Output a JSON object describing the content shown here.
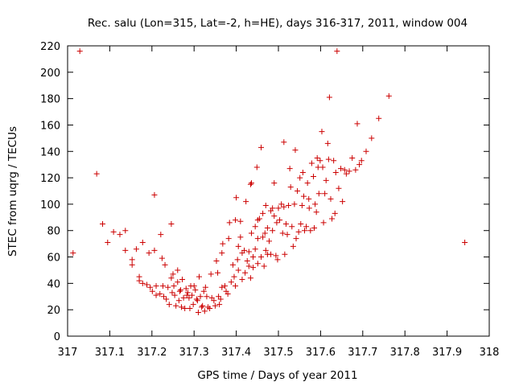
{
  "chart_data": {
    "type": "scatter",
    "title": "Rec. salu (Lon=315, Lat=-2, h=HE), days 316-317, 2011, window 004",
    "xlabel": "GPS time / Days of year 2011",
    "ylabel": "STEC from uqrg / TECUs",
    "xlim": [
      317,
      318
    ],
    "ylim": [
      0,
      220
    ],
    "xticks": [
      317,
      317.1,
      317.2,
      317.3,
      317.4,
      317.5,
      317.6,
      317.7,
      317.8,
      317.9,
      318
    ],
    "xtick_labels": [
      "317",
      "317.1",
      "317.2",
      "317.3",
      "317.4",
      "317.5",
      "317.6",
      "317.7",
      "317.8",
      "317.9",
      "318"
    ],
    "yticks": [
      0,
      20,
      40,
      60,
      80,
      100,
      120,
      140,
      160,
      180,
      200,
      220
    ],
    "ytick_labels": [
      "0",
      "20",
      "40",
      "60",
      "80",
      "100",
      "120",
      "140",
      "160",
      "180",
      "200",
      "220"
    ],
    "grid": false,
    "marker": "+",
    "color": "#cc0000",
    "series": [
      {
        "points": [
          [
            317.013,
            63
          ],
          [
            317.029,
            216
          ],
          [
            317.069,
            123
          ],
          [
            317.083,
            85
          ],
          [
            317.095,
            71
          ],
          [
            317.109,
            79
          ],
          [
            317.124,
            77
          ],
          [
            317.137,
            80
          ],
          [
            317.137,
            65
          ],
          [
            317.153,
            58
          ],
          [
            317.153,
            54
          ],
          [
            317.163,
            66
          ],
          [
            317.17,
            45
          ],
          [
            317.17,
            42
          ],
          [
            317.178,
            71
          ],
          [
            317.178,
            40
          ],
          [
            317.188,
            39
          ],
          [
            317.193,
            63
          ],
          [
            317.196,
            37
          ],
          [
            317.201,
            34
          ],
          [
            317.206,
            65
          ],
          [
            317.206,
            107
          ],
          [
            317.21,
            31
          ],
          [
            317.21,
            38
          ],
          [
            317.219,
            32
          ],
          [
            317.221,
            77
          ],
          [
            317.224,
            59
          ],
          [
            317.226,
            38
          ],
          [
            317.228,
            30
          ],
          [
            317.231,
            54
          ],
          [
            317.234,
            28
          ],
          [
            317.238,
            37
          ],
          [
            317.241,
            24
          ],
          [
            317.246,
            85
          ],
          [
            317.246,
            44
          ],
          [
            317.248,
            33
          ],
          [
            317.25,
            47
          ],
          [
            317.252,
            38
          ],
          [
            317.254,
            31
          ],
          [
            317.257,
            23
          ],
          [
            317.261,
            50
          ],
          [
            317.261,
            41
          ],
          [
            317.264,
            27
          ],
          [
            317.266,
            34
          ],
          [
            317.268,
            35
          ],
          [
            317.27,
            22
          ],
          [
            317.272,
            43
          ],
          [
            317.275,
            29
          ],
          [
            317.278,
            21
          ],
          [
            317.281,
            36
          ],
          [
            317.283,
            31
          ],
          [
            317.285,
            33
          ],
          [
            317.288,
            29
          ],
          [
            317.29,
            21
          ],
          [
            317.292,
            38
          ],
          [
            317.295,
            31
          ],
          [
            317.298,
            24
          ],
          [
            317.3,
            38
          ],
          [
            317.303,
            35
          ],
          [
            317.306,
            28
          ],
          [
            317.308,
            27
          ],
          [
            317.31,
            18
          ],
          [
            317.312,
            45
          ],
          [
            317.315,
            30
          ],
          [
            317.318,
            22
          ],
          [
            317.32,
            23
          ],
          [
            317.323,
            34
          ],
          [
            317.325,
            19
          ],
          [
            317.327,
            37
          ],
          [
            317.33,
            30
          ],
          [
            317.333,
            22
          ],
          [
            317.337,
            21
          ],
          [
            317.34,
            47
          ],
          [
            317.342,
            29
          ],
          [
            317.347,
            27
          ],
          [
            317.35,
            23
          ],
          [
            317.353,
            57
          ],
          [
            317.356,
            48
          ],
          [
            317.358,
            30
          ],
          [
            317.36,
            24
          ],
          [
            317.363,
            28
          ],
          [
            317.366,
            37
          ],
          [
            317.366,
            63
          ],
          [
            317.368,
            70
          ],
          [
            317.373,
            38
          ],
          [
            317.376,
            34
          ],
          [
            317.38,
            32
          ],
          [
            317.382,
            74
          ],
          [
            317.384,
            86
          ],
          [
            317.388,
            41
          ],
          [
            317.392,
            54
          ],
          [
            317.395,
            45
          ],
          [
            317.398,
            38
          ],
          [
            317.398,
            88
          ],
          [
            317.4,
            105
          ],
          [
            317.403,
            58
          ],
          [
            317.405,
            68
          ],
          [
            317.405,
            50
          ],
          [
            317.41,
            87
          ],
          [
            317.41,
            75
          ],
          [
            317.414,
            43
          ],
          [
            317.414,
            63
          ],
          [
            317.419,
            65
          ],
          [
            317.421,
            48
          ],
          [
            317.423,
            102
          ],
          [
            317.426,
            57
          ],
          [
            317.43,
            64
          ],
          [
            317.43,
            53
          ],
          [
            317.434,
            44
          ],
          [
            317.434,
            115
          ],
          [
            317.436,
            116
          ],
          [
            317.436,
            78
          ],
          [
            317.44,
            60
          ],
          [
            317.44,
            52
          ],
          [
            317.445,
            66
          ],
          [
            317.445,
            83
          ],
          [
            317.449,
            128
          ],
          [
            317.451,
            88
          ],
          [
            317.451,
            74
          ],
          [
            317.451,
            55
          ],
          [
            317.455,
            89
          ],
          [
            317.459,
            60
          ],
          [
            317.459,
            143
          ],
          [
            317.463,
            75
          ],
          [
            317.463,
            93
          ],
          [
            317.466,
            53
          ],
          [
            317.468,
            78
          ],
          [
            317.47,
            99
          ],
          [
            317.47,
            65
          ],
          [
            317.474,
            62
          ],
          [
            317.474,
            82
          ],
          [
            317.478,
            72
          ],
          [
            317.482,
            95
          ],
          [
            317.482,
            62
          ],
          [
            317.486,
            97
          ],
          [
            317.486,
            80
          ],
          [
            317.49,
            91
          ],
          [
            317.49,
            116
          ],
          [
            317.494,
            61
          ],
          [
            317.496,
            86
          ],
          [
            317.498,
            58
          ],
          [
            317.5,
            97
          ],
          [
            317.503,
            88
          ],
          [
            317.507,
            100
          ],
          [
            317.51,
            78
          ],
          [
            317.513,
            98
          ],
          [
            317.513,
            147
          ],
          [
            317.515,
            62
          ],
          [
            317.518,
            85
          ],
          [
            317.521,
            77
          ],
          [
            317.524,
            99
          ],
          [
            317.527,
            127
          ],
          [
            317.529,
            113
          ],
          [
            317.532,
            83
          ],
          [
            317.535,
            68
          ],
          [
            317.538,
            100
          ],
          [
            317.54,
            141
          ],
          [
            317.542,
            74
          ],
          [
            317.545,
            110
          ],
          [
            317.548,
            79
          ],
          [
            317.551,
            120
          ],
          [
            317.553,
            85
          ],
          [
            317.556,
            99
          ],
          [
            317.558,
            124
          ],
          [
            317.56,
            106
          ],
          [
            317.562,
            80
          ],
          [
            317.566,
            83
          ],
          [
            317.569,
            116
          ],
          [
            317.572,
            104
          ],
          [
            317.573,
            97
          ],
          [
            317.576,
            80
          ],
          [
            317.579,
            131
          ],
          [
            317.583,
            121
          ],
          [
            317.585,
            82
          ],
          [
            317.587,
            100
          ],
          [
            317.59,
            94
          ],
          [
            317.592,
            135
          ],
          [
            317.594,
            128
          ],
          [
            317.596,
            108
          ],
          [
            317.599,
            133
          ],
          [
            317.603,
            155
          ],
          [
            317.605,
            128
          ],
          [
            317.607,
            86
          ],
          [
            317.61,
            108
          ],
          [
            317.613,
            118
          ],
          [
            317.617,
            146
          ],
          [
            317.619,
            134
          ],
          [
            317.621,
            181
          ],
          [
            317.624,
            104
          ],
          [
            317.627,
            89
          ],
          [
            317.631,
            133
          ],
          [
            317.634,
            93
          ],
          [
            317.636,
            124
          ],
          [
            317.639,
            216
          ],
          [
            317.643,
            112
          ],
          [
            317.648,
            127
          ],
          [
            317.652,
            102
          ],
          [
            317.657,
            126
          ],
          [
            317.661,
            123
          ],
          [
            317.668,
            125
          ],
          [
            317.675,
            135
          ],
          [
            317.683,
            126
          ],
          [
            317.687,
            161
          ],
          [
            317.692,
            130
          ],
          [
            317.697,
            133
          ],
          [
            317.708,
            140
          ],
          [
            317.721,
            150
          ],
          [
            317.738,
            165
          ],
          [
            317.762,
            182
          ],
          [
            317.942,
            71
          ]
        ]
      }
    ]
  }
}
